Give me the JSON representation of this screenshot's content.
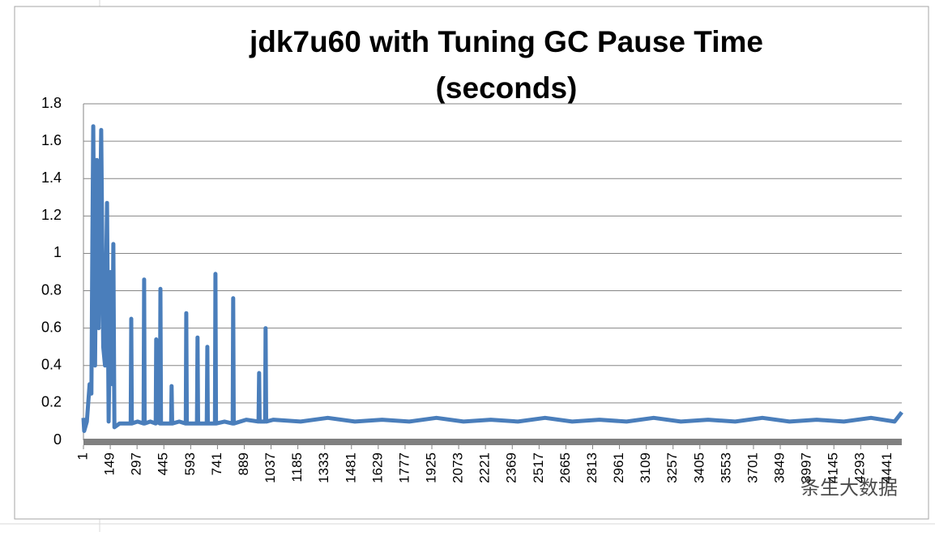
{
  "chart_data": {
    "type": "line",
    "title": [
      "jdk7u60 with Tuning GC Pause Time",
      "(seconds)"
    ],
    "watermark": "条生大数据",
    "x": [
      1,
      5,
      20,
      35,
      45,
      50,
      55,
      65,
      75,
      85,
      99,
      110,
      120,
      131,
      140,
      150,
      160,
      166,
      172,
      200,
      262,
      265,
      268,
      300,
      333,
      336,
      339,
      370,
      400,
      403,
      406,
      423,
      426,
      429,
      485,
      488,
      491,
      530,
      566,
      569,
      572,
      628,
      631,
      634,
      682,
      685,
      688,
      727,
      730,
      733,
      780,
      825,
      828,
      831,
      900,
      968,
      971,
      974,
      1004,
      1007,
      1010,
      1050,
      1200,
      1350,
      1500,
      1650,
      1800,
      1950,
      2100,
      2250,
      2400,
      2550,
      2700,
      2850,
      3000,
      3150,
      3300,
      3450,
      3600,
      3750,
      3900,
      4050,
      4200,
      4350,
      4480,
      4520
    ],
    "series": [
      {
        "name": "GC Pause Time",
        "color": "#4a7ebb",
        "values": [
          0.12,
          0.05,
          0.1,
          0.3,
          0.25,
          1.05,
          1.68,
          0.4,
          1.5,
          0.6,
          1.66,
          0.5,
          0.4,
          1.27,
          0.1,
          0.9,
          0.3,
          1.05,
          0.07,
          0.09,
          0.09,
          0.65,
          0.09,
          0.1,
          0.09,
          0.86,
          0.09,
          0.1,
          0.09,
          0.54,
          0.1,
          0.09,
          0.81,
          0.09,
          0.09,
          0.29,
          0.09,
          0.1,
          0.09,
          0.68,
          0.09,
          0.09,
          0.55,
          0.09,
          0.09,
          0.5,
          0.09,
          0.09,
          0.89,
          0.09,
          0.1,
          0.09,
          0.76,
          0.09,
          0.11,
          0.1,
          0.36,
          0.1,
          0.1,
          0.6,
          0.1,
          0.11,
          0.1,
          0.12,
          0.1,
          0.11,
          0.1,
          0.12,
          0.1,
          0.11,
          0.1,
          0.12,
          0.1,
          0.11,
          0.1,
          0.12,
          0.1,
          0.11,
          0.1,
          0.12,
          0.1,
          0.11,
          0.1,
          0.12,
          0.1,
          0.15
        ]
      }
    ],
    "xlim": [
      1,
      4520
    ],
    "xticks": [
      1,
      149,
      297,
      445,
      593,
      741,
      889,
      1037,
      1185,
      1333,
      1481,
      1629,
      1777,
      1925,
      2073,
      2221,
      2369,
      2517,
      2665,
      2813,
      2961,
      3109,
      3257,
      3405,
      3553,
      3701,
      3849,
      3997,
      4145,
      4293,
      4441
    ],
    "ylim": [
      0,
      1.8
    ],
    "yticks": [
      0,
      0.2,
      0.4,
      0.6,
      0.8,
      1,
      1.2,
      1.4,
      1.6,
      1.8
    ],
    "grid": true
  }
}
